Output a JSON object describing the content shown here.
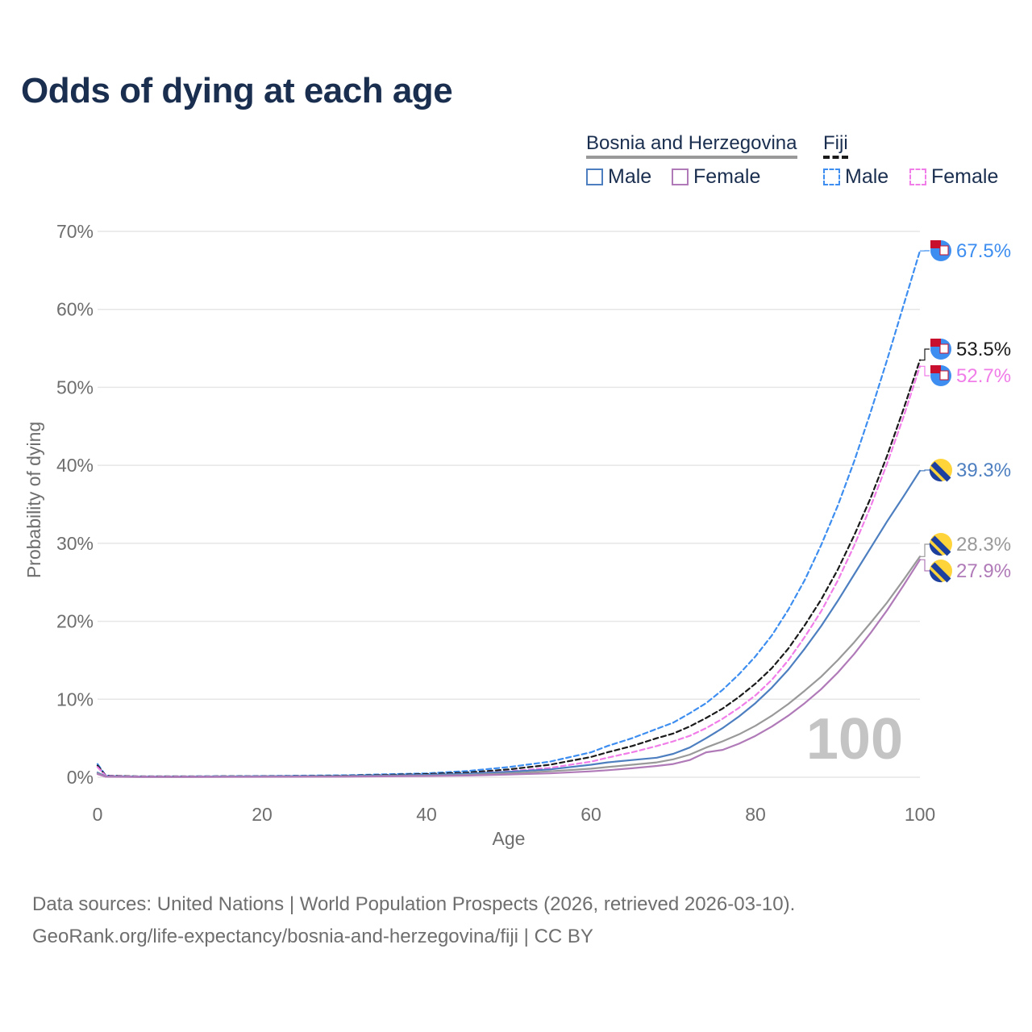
{
  "title": "Odds of dying at each age",
  "legend": {
    "country_a": "Bosnia and Herzegovina",
    "country_b": "Fiji",
    "a_male": "Male",
    "a_female": "Female",
    "b_male": "Male",
    "b_female": "Female"
  },
  "colors": {
    "ba_male": "#4d7fc0",
    "ba_female": "#b07ab8",
    "ba_total": "#999999",
    "fj_male": "#3d8ef0",
    "fj_female": "#f07de8",
    "fj_total": "#1a1a1a",
    "title": "#1a2e4f",
    "grid": "#e6e6e6",
    "tick": "#6e6e6e"
  },
  "footer": {
    "line1": "Data sources: United Nations | World Population Prospects (2026, retrieved 2026-03-10).",
    "line2": "GeoRank.org/life-expectancy/bosnia-and-herzegovina/fiji | CC BY"
  },
  "chart_data": {
    "type": "line",
    "title": "Odds of dying at each age",
    "xlabel": "Age",
    "ylabel": "Probability of dying",
    "xlim": [
      0,
      100
    ],
    "ylim": [
      0,
      70
    ],
    "x_ticks": [
      0,
      20,
      40,
      60,
      80,
      100
    ],
    "y_ticks": [
      0,
      10,
      20,
      30,
      40,
      50,
      60,
      70
    ],
    "y_tick_labels": [
      "0%",
      "10%",
      "20%",
      "30%",
      "40%",
      "50%",
      "60%",
      "70%"
    ],
    "x_tick_labels": [
      "0",
      "20",
      "40",
      "60",
      "80",
      "100"
    ],
    "current_age": "100",
    "x": [
      0,
      1,
      5,
      10,
      20,
      30,
      40,
      45,
      50,
      55,
      60,
      62,
      65,
      68,
      70,
      72,
      74,
      76,
      78,
      80,
      82,
      84,
      86,
      88,
      90,
      92,
      94,
      96,
      98,
      100
    ],
    "series": [
      {
        "name": "Fiji Male",
        "country": "Fiji",
        "sex": "Male",
        "style": "dashed",
        "color_key": "fj_male",
        "end_label": "67.5%",
        "values": [
          1.7,
          0.2,
          0.1,
          0.1,
          0.15,
          0.25,
          0.5,
          0.8,
          1.3,
          2.0,
          3.2,
          4.0,
          5.0,
          6.2,
          7.0,
          8.2,
          9.5,
          11.2,
          13.2,
          15.5,
          18.2,
          21.5,
          25.3,
          29.8,
          34.8,
          40.5,
          46.8,
          53.5,
          60.5,
          67.5
        ]
      },
      {
        "name": "Fiji Total",
        "country": "Fiji",
        "sex": "Total",
        "style": "dashed",
        "color_key": "fj_total",
        "end_label": "53.5%",
        "values": [
          1.5,
          0.2,
          0.1,
          0.1,
          0.12,
          0.2,
          0.4,
          0.6,
          1.0,
          1.6,
          2.6,
          3.2,
          4.0,
          5.0,
          5.6,
          6.5,
          7.6,
          8.8,
          10.3,
          12.0,
          14.0,
          16.5,
          19.5,
          22.8,
          26.6,
          31.0,
          35.8,
          41.2,
          47.2,
          53.5
        ]
      },
      {
        "name": "Fiji Female",
        "country": "Fiji",
        "sex": "Female",
        "style": "dashed",
        "color_key": "fj_female",
        "end_label": "52.7%",
        "values": [
          1.3,
          0.15,
          0.08,
          0.08,
          0.1,
          0.15,
          0.3,
          0.45,
          0.75,
          1.2,
          2.0,
          2.5,
          3.2,
          4.0,
          4.6,
          5.3,
          6.3,
          7.5,
          8.9,
          10.5,
          12.5,
          15.0,
          18.0,
          21.3,
          25.2,
          29.7,
          34.7,
          40.2,
          46.2,
          52.7
        ]
      },
      {
        "name": "Bosnia and Herzegovina Male",
        "country": "Bosnia and Herzegovina",
        "sex": "Male",
        "style": "solid",
        "color_key": "ba_male",
        "end_label": "39.3%",
        "values": [
          0.6,
          0.1,
          0.05,
          0.05,
          0.1,
          0.15,
          0.3,
          0.45,
          0.7,
          1.0,
          1.6,
          1.9,
          2.2,
          2.5,
          3.0,
          3.8,
          5.0,
          6.3,
          7.8,
          9.5,
          11.5,
          13.8,
          16.5,
          19.4,
          22.6,
          26.0,
          29.4,
          32.8,
          36.0,
          39.3
        ]
      },
      {
        "name": "Bosnia and Herzegovina Total",
        "country": "Bosnia and Herzegovina",
        "sex": "Total",
        "style": "solid",
        "color_key": "ba_total",
        "end_label": "28.3%",
        "values": [
          0.5,
          0.08,
          0.04,
          0.04,
          0.07,
          0.1,
          0.2,
          0.3,
          0.5,
          0.75,
          1.1,
          1.3,
          1.6,
          1.9,
          2.3,
          2.9,
          3.8,
          4.6,
          5.5,
          6.6,
          7.9,
          9.4,
          11.1,
          12.9,
          15.0,
          17.3,
          19.8,
          22.4,
          25.3,
          28.3
        ]
      },
      {
        "name": "Bosnia and Herzegovina Female",
        "country": "Bosnia and Herzegovina",
        "sex": "Female",
        "style": "solid",
        "color_key": "ba_female",
        "end_label": "27.9%",
        "values": [
          0.4,
          0.06,
          0.03,
          0.03,
          0.05,
          0.07,
          0.15,
          0.22,
          0.35,
          0.5,
          0.75,
          0.9,
          1.15,
          1.45,
          1.7,
          2.2,
          3.2,
          3.5,
          4.3,
          5.3,
          6.5,
          7.9,
          9.5,
          11.3,
          13.4,
          15.8,
          18.5,
          21.4,
          24.6,
          27.9
        ]
      }
    ],
    "end_label_order": [
      "fj_male",
      "fj_total",
      "fj_female",
      "ba_male",
      "ba_total",
      "ba_female"
    ]
  }
}
